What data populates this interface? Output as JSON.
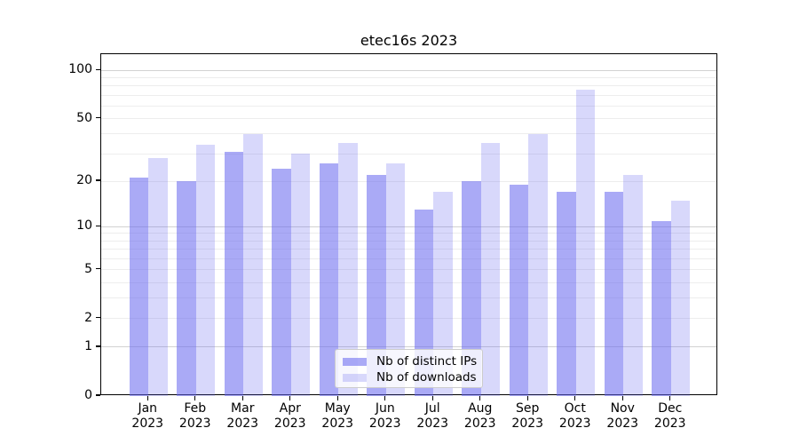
{
  "title": "etec16s 2023",
  "chart_data": {
    "type": "bar",
    "title": "etec16s 2023",
    "categories": [
      "Jan",
      "Feb",
      "Mar",
      "Apr",
      "May",
      "Jun",
      "Jul",
      "Aug",
      "Sep",
      "Oct",
      "Nov",
      "Dec"
    ],
    "year_label": "2023",
    "series": [
      {
        "name": "Nb of distinct IPs",
        "fill": "rgba(100,100,238,0.55)",
        "hex_on_white": "#aaaaf5",
        "values": [
          21,
          20,
          31,
          24,
          26,
          22,
          13,
          20,
          19,
          17,
          17,
          11
        ]
      },
      {
        "name": "Nb of downloads",
        "fill": "rgba(100,100,238,0.25)",
        "hex_on_white": "#d8d8fa",
        "values": [
          28,
          34,
          40,
          30,
          35,
          26,
          17,
          35,
          40,
          76,
          22,
          15
        ]
      }
    ],
    "yscale": "log1p",
    "ylim": [
      0,
      126
    ],
    "y_ticks": [
      {
        "value": 0,
        "label": "0"
      },
      {
        "value": 1,
        "label": "1"
      },
      {
        "value": 2,
        "label": "2"
      },
      {
        "value": 5,
        "label": "5"
      },
      {
        "value": 10,
        "label": "10"
      },
      {
        "value": 20,
        "label": "20"
      },
      {
        "value": 50,
        "label": "50"
      },
      {
        "value": 100,
        "label": "100"
      }
    ],
    "y_major_grid": [
      1,
      10,
      100
    ],
    "y_minor_grid": [
      2,
      3,
      4,
      5,
      6,
      7,
      8,
      9,
      20,
      30,
      40,
      50,
      60,
      70,
      80,
      90
    ],
    "grid": true,
    "legend_position": "lower-center",
    "xlabel": "",
    "ylabel": ""
  }
}
